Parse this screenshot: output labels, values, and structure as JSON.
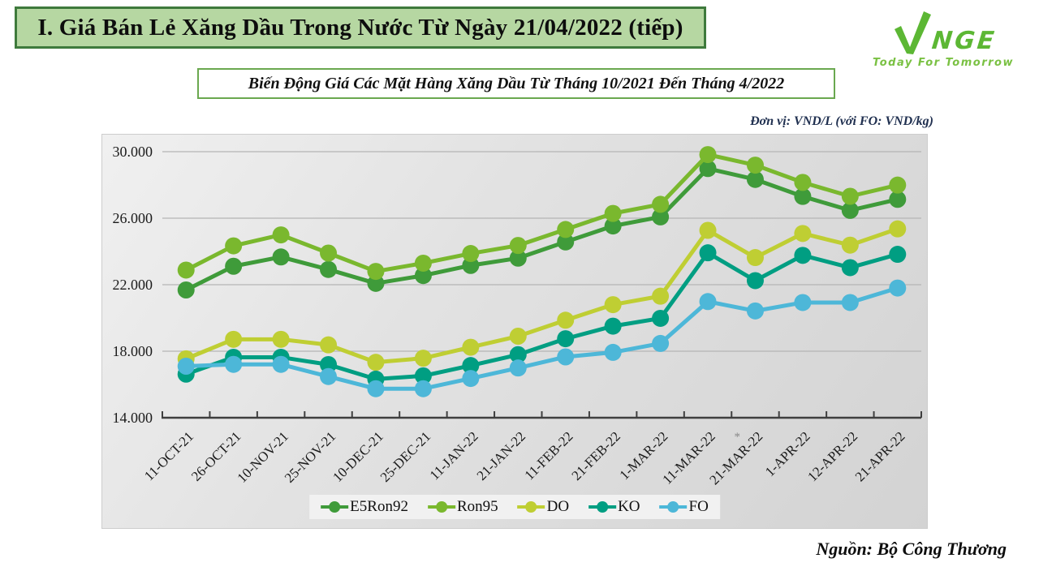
{
  "header": {
    "title": "I. Giá Bán Lẻ Xăng Dầu Trong Nước Từ Ngày 21/04/2022 (tiếp)"
  },
  "logo": {
    "brand": "NGE",
    "tagline": "Today For Tomorrow",
    "color": "#5cb734"
  },
  "chart_title": "Biến Động Giá Các Mặt Hàng Xăng Dầu Từ Tháng 10/2021 Đến Tháng 4/2022",
  "unit_note": "Đơn vị: VND/L (với FO: VND/kg)",
  "source": "Nguồn: Bộ Công Thương",
  "chart_data": {
    "type": "line",
    "title": "Biến Động Giá Các Mặt Hàng Xăng Dầu Từ Tháng 10/2021 Đến Tháng 4/2022",
    "xlabel": "",
    "ylabel": "VND/L (FO: VND/kg)",
    "ylim": [
      14000,
      30000
    ],
    "yticks": [
      14000,
      18000,
      22000,
      26000,
      30000
    ],
    "ytick_labels": [
      "14.000",
      "18.000",
      "22.000",
      "26.000",
      "30.000"
    ],
    "grid": true,
    "legend_position": "bottom",
    "categories": [
      "11-OCT-21",
      "26-OCT-21",
      "10-NOV-21",
      "25-NOV-21",
      "10-DEC-21",
      "25-DEC-21",
      "11-JAN-22",
      "21-JAN-22",
      "11-FEB-22",
      "21-FEB-22",
      "1-MAR-22",
      "11-MAR-22",
      "21-MAR-22",
      "1-APR-22",
      "12-APR-22",
      "21-APR-22"
    ],
    "footnote": {
      "category_index": 12,
      "marker": "*"
    },
    "series": [
      {
        "name": "E5Ron92",
        "color": "#3f9b3a",
        "values": [
          21683,
          23110,
          23669,
          22917,
          22082,
          22550,
          23159,
          23595,
          24571,
          25532,
          26077,
          28985,
          28330,
          27309,
          26470,
          27134
        ]
      },
      {
        "name": "Ron95",
        "color": "#7ab82e",
        "values": [
          22879,
          24338,
          24996,
          23902,
          22801,
          23295,
          23876,
          24360,
          25322,
          26287,
          26834,
          29824,
          29192,
          28153,
          27317,
          27992
        ]
      },
      {
        "name": "DO",
        "color": "#bfce33",
        "values": [
          17545,
          18716,
          18716,
          18382,
          17334,
          17579,
          18239,
          18903,
          19865,
          20801,
          21310,
          25268,
          23633,
          25080,
          24380,
          25359
        ]
      },
      {
        "name": "KO",
        "color": "#009e82",
        "values": [
          16622,
          17637,
          17637,
          17197,
          16322,
          16518,
          17138,
          17793,
          18751,
          19509,
          19978,
          23918,
          22245,
          23764,
          23027,
          23828
        ]
      },
      {
        "name": "FO",
        "color": "#4db7d8",
        "values": [
          17097,
          17210,
          17210,
          16477,
          15745,
          15745,
          16362,
          16993,
          17659,
          17932,
          18468,
          20987,
          20423,
          20929,
          20929,
          21800
        ]
      }
    ]
  }
}
